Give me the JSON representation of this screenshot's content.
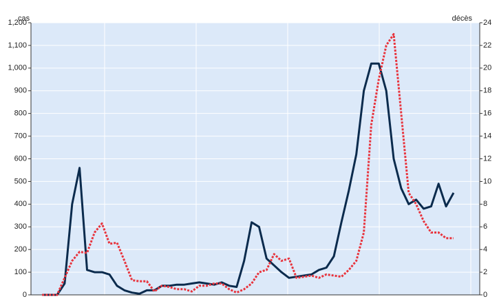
{
  "chart_data": {
    "type": "line",
    "y_label": "cas",
    "y2_label": "décès",
    "categories": [
      null,
      null,
      null,
      null,
      null,
      null,
      null,
      null,
      null,
      null,
      null,
      null,
      null,
      null,
      null,
      null,
      null,
      null,
      null,
      null,
      null,
      null,
      null,
      null,
      null,
      null,
      null,
      null,
      null,
      null,
      null,
      null,
      null,
      null,
      null,
      null,
      null,
      null,
      null,
      null,
      null,
      null,
      null,
      null,
      null,
      null,
      null,
      null,
      null,
      null,
      null,
      null,
      null,
      null,
      null,
      null,
      null,
      null,
      null,
      null
    ],
    "series": [
      {
        "name": "cas",
        "color": "#0b2b4d",
        "values": [
          null,
          0,
          0,
          0,
          50,
          400,
          560,
          110,
          100,
          100,
          90,
          40,
          20,
          10,
          5,
          20,
          20,
          40,
          40,
          45,
          45,
          50,
          55,
          50,
          45,
          55,
          40,
          35,
          150,
          320,
          300,
          160,
          130,
          100,
          75,
          80,
          85,
          90,
          110,
          120,
          170,
          320,
          460,
          620,
          900,
          1020,
          1020,
          900,
          600,
          470,
          400,
          420,
          380,
          390,
          490,
          390,
          450,
          null,
          null,
          null
        ]
      },
      {
        "name": "décès",
        "color": "#e8333c",
        "axis": "y2",
        "values": [
          null,
          0,
          0,
          0,
          1.5,
          3,
          3.8,
          3.7,
          5.5,
          6.3,
          4.5,
          4.6,
          3,
          1.3,
          1.2,
          1.2,
          0.3,
          0.8,
          0.7,
          0.5,
          0.5,
          0.3,
          0.8,
          0.8,
          1,
          1,
          0.5,
          0.2,
          0.5,
          1,
          2,
          2.2,
          3.6,
          3,
          3.2,
          1.5,
          1.6,
          1.7,
          1.5,
          1.8,
          1.7,
          1.6,
          2.2,
          3,
          5.5,
          15,
          19,
          22,
          23,
          16,
          9,
          8,
          6.5,
          5.5,
          5.5,
          5,
          5,
          null,
          null,
          null
        ]
      }
    ],
    "ylim": [
      0,
      1200
    ],
    "yticks": [
      0,
      100,
      200,
      300,
      400,
      500,
      600,
      700,
      800,
      900,
      {
        "value": 1000,
        "label": "1,000"
      },
      {
        "value": 1100,
        "label": "1,100"
      },
      {
        "value": 1200,
        "label": "1,200"
      }
    ],
    "y2lim": [
      0,
      24
    ],
    "y2ticks": [
      0,
      2,
      4,
      6,
      8,
      10,
      12,
      14,
      16,
      18,
      20,
      22,
      24
    ],
    "grid": true
  }
}
